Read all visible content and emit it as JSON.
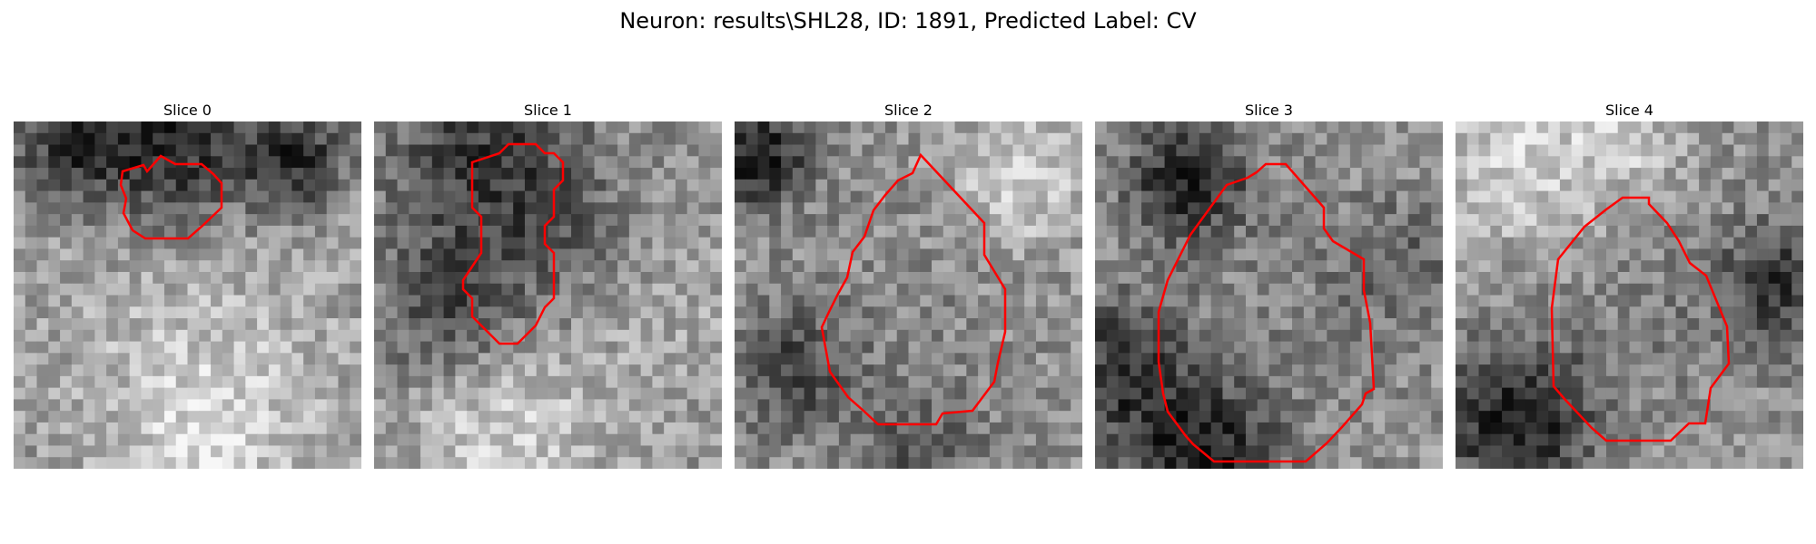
{
  "figure": {
    "title": "Neuron: results\\SHL28, ID: 1891, Predicted Label: CV"
  },
  "colors": {
    "contour": "#ff0000"
  },
  "panels": [
    {
      "title": "Slice 0"
    },
    {
      "title": "Slice 1"
    },
    {
      "title": "Slice 2"
    },
    {
      "title": "Slice 3"
    },
    {
      "title": "Slice 4"
    }
  ]
}
